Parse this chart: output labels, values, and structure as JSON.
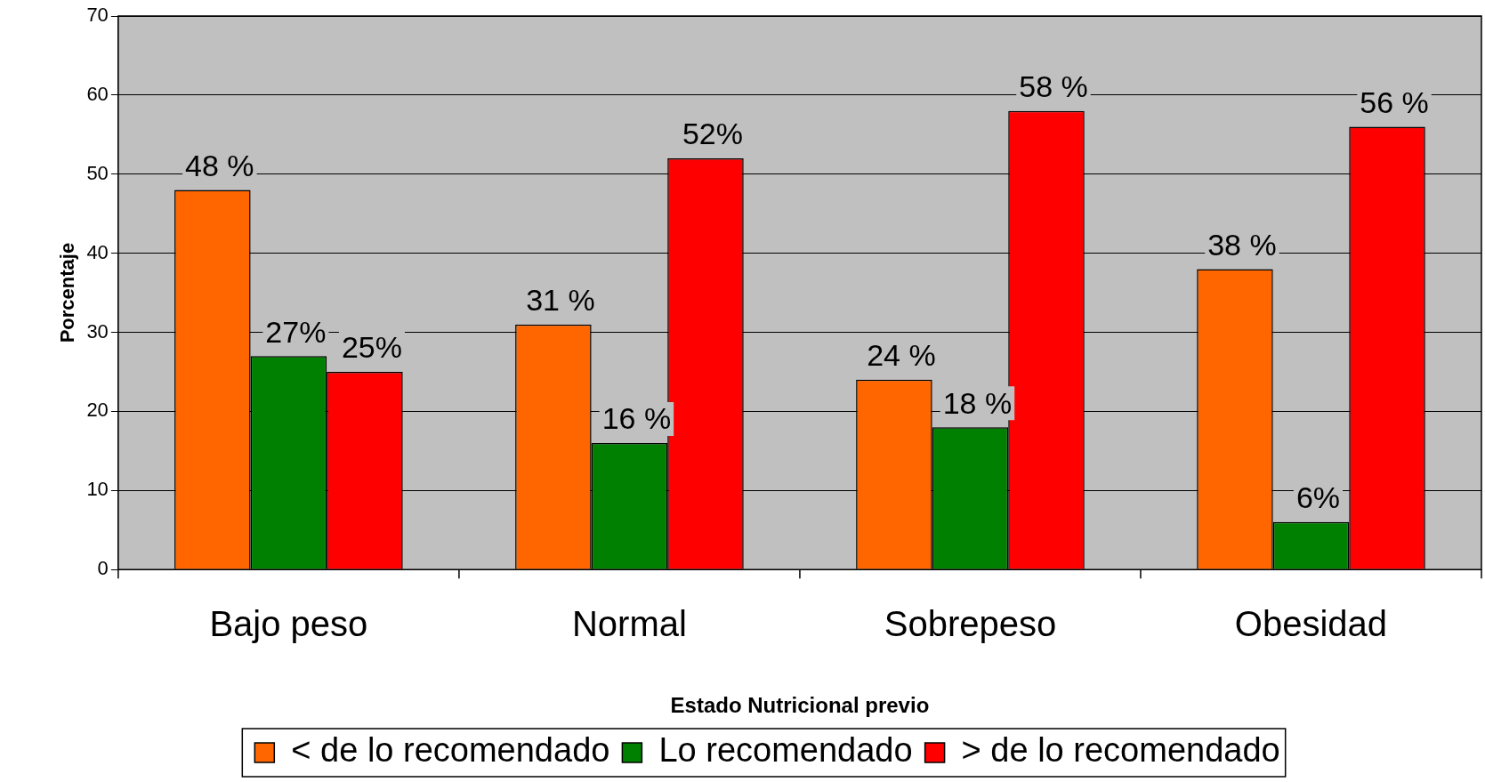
{
  "chart_data": {
    "type": "bar",
    "xlabel": "Estado Nutricional previo",
    "ylabel": "Porcentaje",
    "categories": [
      "Bajo peso",
      "Normal",
      "Sobrepeso",
      "Obesidad"
    ],
    "series": [
      {
        "name": "< de lo recomendado",
        "color": "#ff6600",
        "values": [
          48,
          31,
          24,
          38
        ],
        "value_labels": [
          "48 %",
          "31 %",
          "24 %",
          "38 %"
        ]
      },
      {
        "name": "Lo recomendado",
        "color": "#008000",
        "values": [
          27,
          16,
          18,
          6
        ],
        "value_labels": [
          "27%",
          "16 %",
          "18 %",
          "6%"
        ]
      },
      {
        "name": "> de lo recomendado",
        "color": "#ff0000",
        "values": [
          25,
          52,
          58,
          56
        ],
        "value_labels": [
          "25%",
          "52%",
          "58 %",
          "56 %"
        ]
      }
    ],
    "ylim": [
      0,
      70
    ],
    "yticks": [
      0,
      10,
      20,
      30,
      40,
      50,
      60,
      70
    ],
    "grid": "y",
    "legend": "bottom"
  }
}
